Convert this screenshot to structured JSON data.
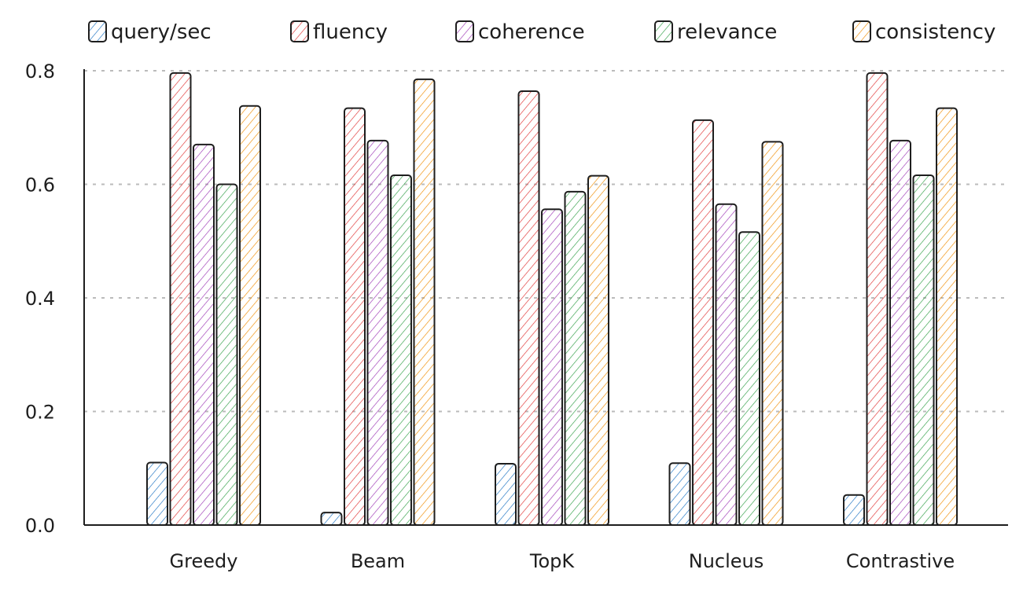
{
  "chart_data": {
    "type": "bar",
    "title": "",
    "xlabel": "",
    "ylabel": "",
    "ylim": [
      0,
      0.8
    ],
    "yticks": [
      "0.0",
      "0.2",
      "0.4",
      "0.6",
      "0.8"
    ],
    "grid": "horizontal dashed",
    "legend_placement": "top",
    "categories": [
      "Greedy",
      "Beam",
      "TopK",
      "Nucleus",
      "Contrastive"
    ],
    "series": [
      {
        "name": "query/sec",
        "color": "#1971c2",
        "values": [
          0.11,
          0.022,
          0.108,
          0.109,
          0.053
        ]
      },
      {
        "name": "fluency",
        "color": "#e03131",
        "values": [
          0.796,
          0.734,
          0.764,
          0.713,
          0.796
        ]
      },
      {
        "name": "coherence",
        "color": "#9c36b5",
        "values": [
          0.67,
          0.677,
          0.556,
          0.565,
          0.677
        ]
      },
      {
        "name": "relevance",
        "color": "#2f9e44",
        "values": [
          0.6,
          0.616,
          0.587,
          0.516,
          0.616
        ]
      },
      {
        "name": "consistency",
        "color": "#f08c00",
        "values": [
          0.738,
          0.785,
          0.615,
          0.675,
          0.734
        ]
      }
    ]
  }
}
